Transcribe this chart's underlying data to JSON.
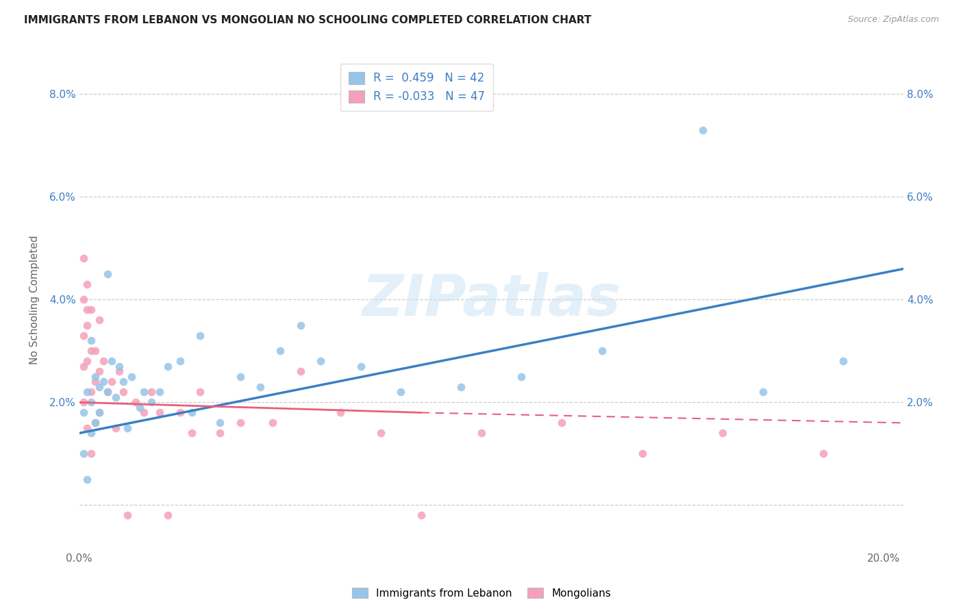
{
  "title": "IMMIGRANTS FROM LEBANON VS MONGOLIAN NO SCHOOLING COMPLETED CORRELATION CHART",
  "source": "Source: ZipAtlas.com",
  "ylabel": "No Schooling Completed",
  "xlim": [
    0.0,
    0.205
  ],
  "ylim": [
    -0.008,
    0.088
  ],
  "yticks": [
    0.0,
    0.02,
    0.04,
    0.06,
    0.08
  ],
  "ytick_labels": [
    "",
    "2.0%",
    "4.0%",
    "6.0%",
    "8.0%"
  ],
  "xticks": [
    0.0,
    0.04,
    0.08,
    0.12,
    0.16,
    0.2
  ],
  "xtick_labels": [
    "0.0%",
    "",
    "",
    "",
    "",
    "20.0%"
  ],
  "blue_color": "#95C5E8",
  "pink_color": "#F4A0B8",
  "blue_line_color": "#3B7FC4",
  "pink_line_color": "#E8607A",
  "watermark": "ZIPatlas",
  "lebanon_R": 0.459,
  "mongolian_R": -0.033,
  "lebanon_N": 42,
  "mongolian_N": 47,
  "lebanon_x": [
    0.001,
    0.001,
    0.002,
    0.002,
    0.003,
    0.003,
    0.004,
    0.004,
    0.005,
    0.005,
    0.006,
    0.007,
    0.008,
    0.009,
    0.01,
    0.011,
    0.012,
    0.013,
    0.015,
    0.016,
    0.018,
    0.02,
    0.022,
    0.025,
    0.028,
    0.03,
    0.035,
    0.04,
    0.045,
    0.05,
    0.055,
    0.06,
    0.07,
    0.08,
    0.095,
    0.11,
    0.13,
    0.155,
    0.17,
    0.19,
    0.003,
    0.007
  ],
  "lebanon_y": [
    0.018,
    0.01,
    0.022,
    0.005,
    0.02,
    0.014,
    0.025,
    0.016,
    0.018,
    0.023,
    0.024,
    0.022,
    0.028,
    0.021,
    0.027,
    0.024,
    0.015,
    0.025,
    0.019,
    0.022,
    0.02,
    0.022,
    0.027,
    0.028,
    0.018,
    0.033,
    0.016,
    0.025,
    0.023,
    0.03,
    0.035,
    0.028,
    0.027,
    0.022,
    0.023,
    0.025,
    0.03,
    0.073,
    0.022,
    0.028,
    0.032,
    0.045
  ],
  "mongolian_x": [
    0.001,
    0.001,
    0.001,
    0.001,
    0.001,
    0.002,
    0.002,
    0.002,
    0.002,
    0.003,
    0.003,
    0.003,
    0.003,
    0.004,
    0.004,
    0.004,
    0.005,
    0.005,
    0.005,
    0.006,
    0.007,
    0.008,
    0.009,
    0.01,
    0.011,
    0.012,
    0.014,
    0.016,
    0.018,
    0.02,
    0.022,
    0.025,
    0.028,
    0.03,
    0.035,
    0.04,
    0.048,
    0.055,
    0.065,
    0.075,
    0.085,
    0.1,
    0.12,
    0.14,
    0.16,
    0.185,
    0.002
  ],
  "mongolian_y": [
    0.048,
    0.04,
    0.033,
    0.027,
    0.02,
    0.043,
    0.035,
    0.028,
    0.015,
    0.038,
    0.03,
    0.022,
    0.01,
    0.03,
    0.024,
    0.016,
    0.036,
    0.026,
    0.018,
    0.028,
    0.022,
    0.024,
    0.015,
    0.026,
    0.022,
    -0.002,
    0.02,
    0.018,
    0.022,
    0.018,
    -0.002,
    0.018,
    0.014,
    0.022,
    0.014,
    0.016,
    0.016,
    0.026,
    0.018,
    0.014,
    -0.002,
    0.014,
    0.016,
    0.01,
    0.014,
    0.01,
    0.038
  ],
  "blue_line_x0": 0.0,
  "blue_line_y0": 0.014,
  "blue_line_x1": 0.205,
  "blue_line_y1": 0.046,
  "pink_line_solid_x0": 0.0,
  "pink_line_solid_y0": 0.02,
  "pink_line_solid_x1": 0.085,
  "pink_line_solid_y1": 0.018,
  "pink_line_dash_x0": 0.085,
  "pink_line_dash_y0": 0.018,
  "pink_line_dash_x1": 0.205,
  "pink_line_dash_y1": 0.016
}
